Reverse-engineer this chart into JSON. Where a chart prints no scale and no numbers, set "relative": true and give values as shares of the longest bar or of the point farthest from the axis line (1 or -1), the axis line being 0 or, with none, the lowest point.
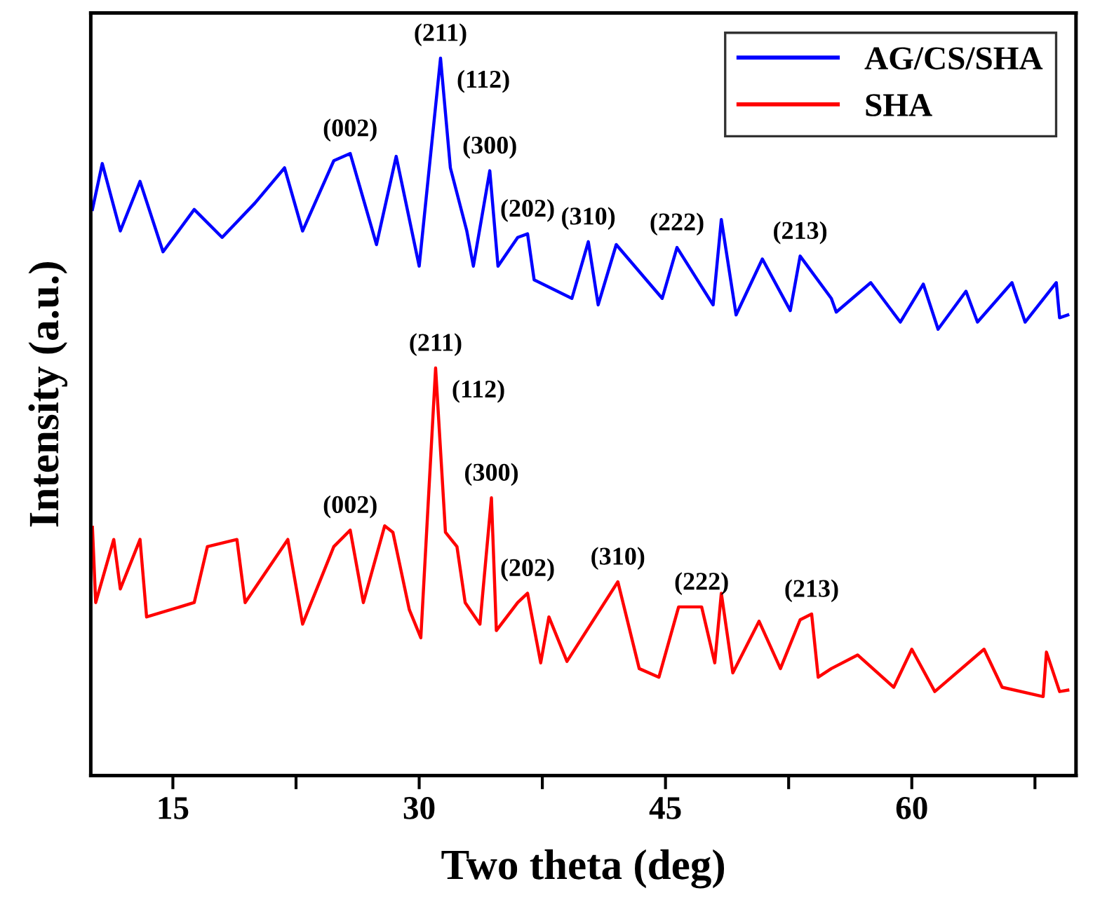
{
  "chart_data": {
    "type": "line",
    "relative": true,
    "xlabel": "Two theta (deg)",
    "ylabel": "Intensity (a.u.)",
    "xlim": [
      10,
      70
    ],
    "xticks": [
      15,
      {
        "value": 22.5,
        "label": null
      },
      30,
      {
        "value": 37.5,
        "label": null
      },
      45,
      {
        "value": 52.5,
        "label": null
      },
      60,
      {
        "value": 67.5,
        "label": null
      }
    ],
    "tick_labels": "x",
    "grid": false,
    "legend": "top right",
    "marker": "none",
    "line_style": "solid",
    "series": [
      {
        "name": "AG/CS/SHA",
        "color": "#0000ff",
        "x": [
          10.1,
          10.7,
          11.8,
          13.0,
          14.4,
          16.3,
          18.0,
          20.0,
          21.8,
          22.9,
          24.8,
          25.8,
          27.4,
          28.6,
          30.0,
          31.3,
          31.9,
          32.9,
          33.3,
          34.3,
          34.8,
          36.0,
          36.6,
          37.0,
          39.3,
          40.3,
          40.9,
          42.0,
          44.8,
          45.7,
          47.9,
          48.4,
          49.3,
          50.9,
          52.6,
          53.2,
          55.1,
          55.4,
          57.5,
          59.3,
          60.7,
          61.6,
          63.3,
          64.0,
          66.1,
          66.9,
          68.8,
          69.0,
          69.5
        ],
        "values": [
          0.789,
          0.853,
          0.759,
          0.828,
          0.73,
          0.789,
          0.75,
          0.798,
          0.847,
          0.759,
          0.857,
          0.867,
          0.74,
          0.863,
          0.71,
          1.0,
          0.847,
          0.759,
          0.71,
          0.843,
          0.71,
          0.75,
          0.755,
          0.691,
          0.665,
          0.744,
          0.656,
          0.74,
          0.665,
          0.736,
          0.656,
          0.775,
          0.642,
          0.72,
          0.648,
          0.724,
          0.665,
          0.646,
          0.687,
          0.632,
          0.685,
          0.622,
          0.675,
          0.632,
          0.687,
          0.632,
          0.687,
          0.638,
          0.642
        ]
      },
      {
        "name": "SHA",
        "color": "#ff0000",
        "x": [
          10.1,
          10.3,
          11.4,
          11.8,
          13.0,
          13.4,
          16.3,
          17.1,
          18.9,
          19.4,
          22.0,
          22.9,
          24.8,
          25.8,
          26.6,
          27.9,
          28.4,
          29.4,
          30.1,
          31.0,
          31.6,
          32.3,
          32.8,
          33.7,
          34.4,
          34.7,
          36.0,
          36.6,
          37.4,
          37.9,
          39.0,
          42.1,
          43.4,
          44.6,
          45.8,
          47.2,
          48.0,
          48.4,
          49.1,
          50.7,
          52.0,
          53.2,
          53.9,
          54.3,
          55.1,
          56.7,
          58.9,
          60.0,
          61.4,
          64.4,
          65.5,
          68.0,
          68.2,
          69.0,
          69.5
        ],
        "values": [
          0.346,
          0.241,
          0.329,
          0.26,
          0.329,
          0.221,
          0.241,
          0.319,
          0.329,
          0.241,
          0.329,
          0.211,
          0.319,
          0.342,
          0.241,
          0.348,
          0.339,
          0.231,
          0.192,
          0.568,
          0.339,
          0.319,
          0.241,
          0.211,
          0.387,
          0.202,
          0.241,
          0.254,
          0.157,
          0.221,
          0.159,
          0.27,
          0.149,
          0.137,
          0.235,
          0.235,
          0.157,
          0.254,
          0.143,
          0.215,
          0.149,
          0.217,
          0.225,
          0.137,
          0.149,
          0.168,
          0.123,
          0.176,
          0.117,
          0.176,
          0.123,
          0.11,
          0.172,
          0.117,
          0.119
        ]
      }
    ],
    "annotations": [
      {
        "text": "(211)",
        "x": 31.3,
        "y": 1.0
      },
      {
        "text": "(112)",
        "x": 31.3,
        "y": 1.0
      },
      {
        "text": "(002)",
        "x": 25.8,
        "y": 0.867
      },
      {
        "text": "(300)",
        "x": 34.3,
        "y": 0.843
      },
      {
        "text": "(202)",
        "x": 36.6,
        "y": 0.755
      },
      {
        "text": "(310)",
        "x": 40.3,
        "y": 0.744
      },
      {
        "text": "(222)",
        "x": 45.7,
        "y": 0.736
      },
      {
        "text": "(213)",
        "x": 53.2,
        "y": 0.724
      },
      {
        "text": "(211)",
        "x": 31.0,
        "y": 0.568
      },
      {
        "text": "(112)",
        "x": 31.0,
        "y": 0.568
      },
      {
        "text": "(002)",
        "x": 25.8,
        "y": 0.342
      },
      {
        "text": "(300)",
        "x": 34.4,
        "y": 0.387
      },
      {
        "text": "(202)",
        "x": 36.6,
        "y": 0.254
      },
      {
        "text": "(310)",
        "x": 42.1,
        "y": 0.27
      },
      {
        "text": "(222)",
        "x": 47.2,
        "y": 0.235
      },
      {
        "text": "(213)",
        "x": 53.9,
        "y": 0.225
      }
    ]
  }
}
